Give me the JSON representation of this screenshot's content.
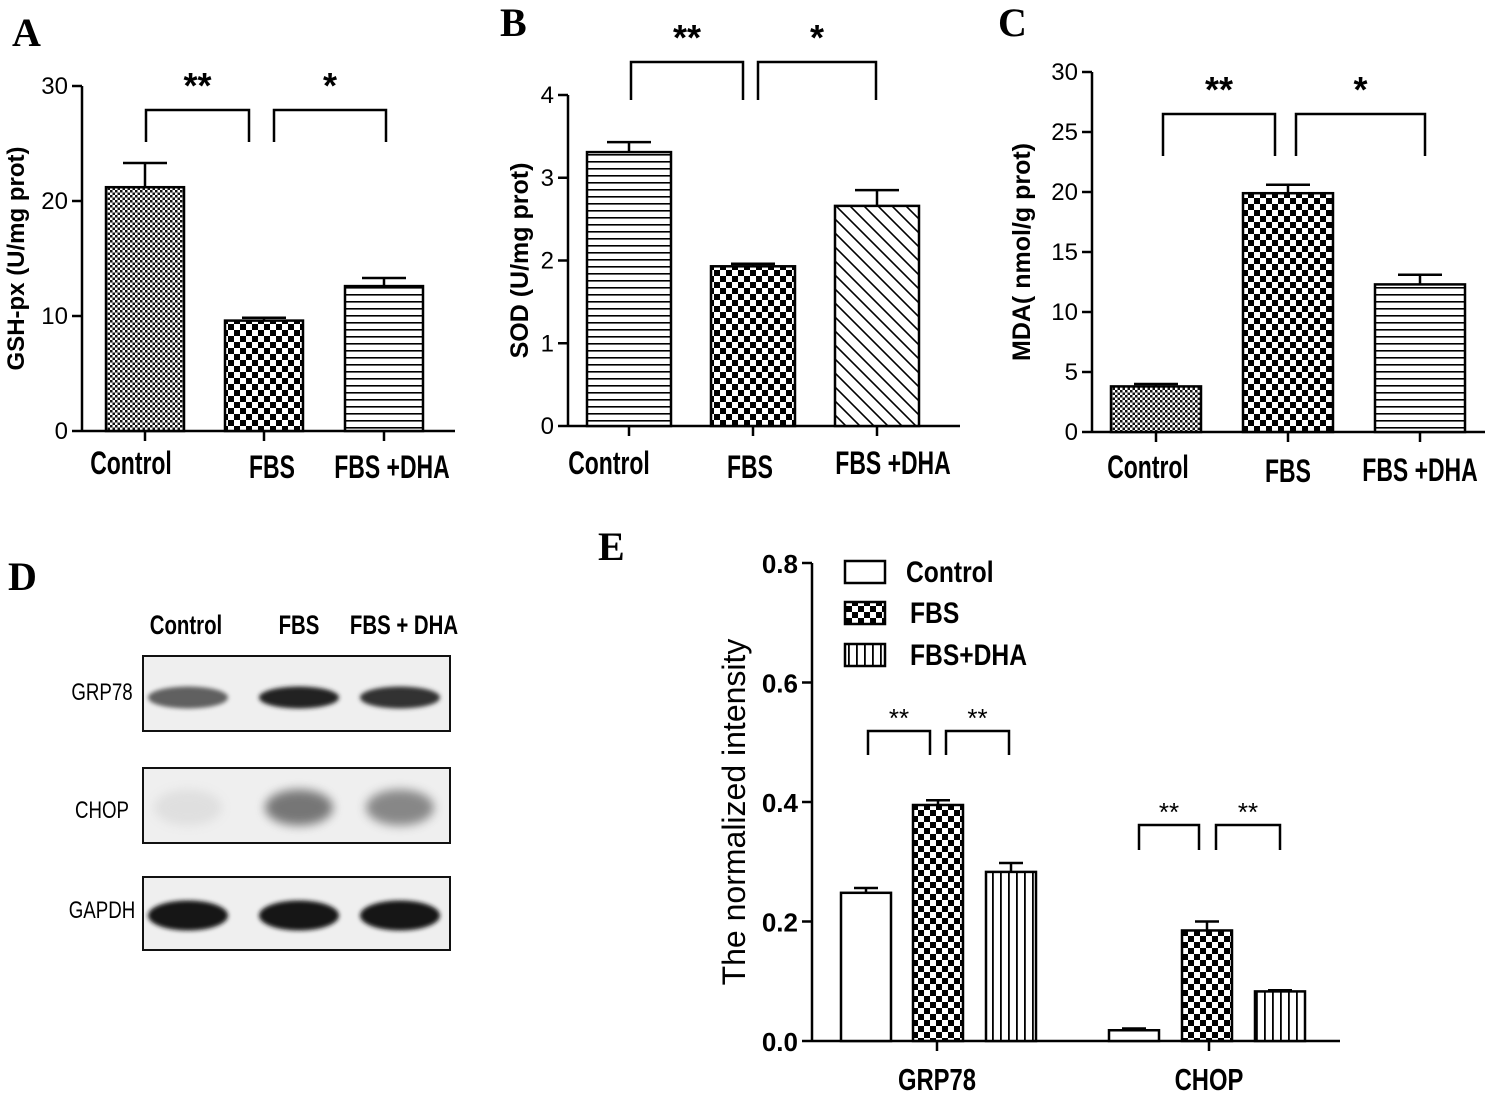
{
  "panel_letters": [
    "A",
    "B",
    "C",
    "D",
    "E"
  ],
  "chart_data": [
    {
      "panel": "A",
      "type": "bar",
      "categories": [
        "Control",
        "FBS",
        "FBS +DHA"
      ],
      "values": [
        21.2,
        9.6,
        12.6
      ],
      "errors": [
        2.1,
        0.25,
        0.7
      ],
      "patterns": [
        "fine-check",
        "checker",
        "hlines"
      ],
      "ylabel": "GSH-px (U/mg prot)",
      "ylim": [
        0,
        30
      ],
      "yticks": [
        0,
        10,
        20,
        30
      ],
      "significance": [
        {
          "from": 0,
          "to": 1,
          "label": "**"
        },
        {
          "from": 1,
          "to": 2,
          "label": "*"
        }
      ]
    },
    {
      "panel": "B",
      "type": "bar",
      "categories": [
        "Control",
        "FBS",
        "FBS +DHA"
      ],
      "values": [
        3.31,
        1.93,
        2.66
      ],
      "errors": [
        0.12,
        0.03,
        0.19
      ],
      "patterns": [
        "hlines",
        "checker",
        "diag"
      ],
      "ylabel": "SOD (U/mg prot)",
      "ylim": [
        0,
        4
      ],
      "yticks": [
        0,
        1,
        2,
        3,
        4
      ],
      "significance": [
        {
          "from": 0,
          "to": 1,
          "label": "**"
        },
        {
          "from": 1,
          "to": 2,
          "label": "*"
        }
      ]
    },
    {
      "panel": "C",
      "type": "bar",
      "categories": [
        "Control",
        "FBS",
        "FBS +DHA"
      ],
      "values": [
        3.8,
        19.9,
        12.3
      ],
      "errors": [
        0.2,
        0.7,
        0.8
      ],
      "patterns": [
        "fine-check",
        "checker",
        "hlines"
      ],
      "ylabel": "MDA( nmol/g prot)",
      "ylim": [
        0,
        30
      ],
      "yticks": [
        0,
        5,
        10,
        15,
        20,
        25,
        30
      ],
      "significance": [
        {
          "from": 0,
          "to": 1,
          "label": "**"
        },
        {
          "from": 1,
          "to": 2,
          "label": "*"
        }
      ]
    },
    {
      "panel": "E",
      "type": "bar",
      "categories": [
        "GRP78",
        "CHOP"
      ],
      "series": [
        {
          "name": "Control",
          "values": [
            0.248,
            0.018
          ],
          "errors": [
            0.008,
            0.003
          ],
          "pattern": "white"
        },
        {
          "name": "FBS",
          "values": [
            0.395,
            0.185
          ],
          "errors": [
            0.008,
            0.015
          ],
          "pattern": "checker"
        },
        {
          "name": "FBS+DHA",
          "values": [
            0.283,
            0.083
          ],
          "errors": [
            0.015,
            0.002
          ],
          "pattern": "vlines"
        }
      ],
      "ylabel": "The normalized intensity",
      "ylim": [
        0,
        0.8
      ],
      "yticks": [
        "0.0",
        "0.2",
        "0.4",
        "0.6",
        "0.8"
      ],
      "significance": [
        {
          "group": 0,
          "from": 0,
          "to": 1,
          "label": "**"
        },
        {
          "group": 0,
          "from": 1,
          "to": 2,
          "label": "**"
        },
        {
          "group": 1,
          "from": 0,
          "to": 1,
          "label": "**"
        },
        {
          "group": 1,
          "from": 1,
          "to": 2,
          "label": "**"
        }
      ]
    }
  ],
  "western_blot": {
    "lanes": [
      "Control",
      "FBS",
      "FBS + DHA"
    ],
    "rows": [
      {
        "protein": "GRP78",
        "intensity": [
          0.62,
          0.9,
          0.82
        ]
      },
      {
        "protein": "CHOP",
        "intensity": [
          0.1,
          0.55,
          0.5
        ]
      },
      {
        "protein": "GAPDH",
        "intensity": [
          0.95,
          0.95,
          0.95
        ]
      }
    ]
  }
}
